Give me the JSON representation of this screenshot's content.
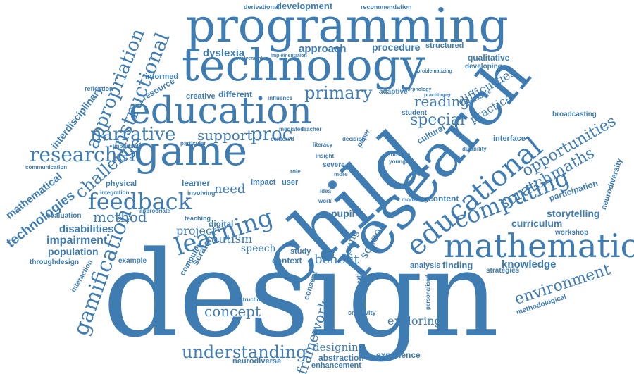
{
  "accent_color": "#3f7cb2",
  "words": {
    "design": "design",
    "child": "child",
    "research": "research",
    "programming": "programming",
    "technology": "technology",
    "education": "education",
    "game": "game",
    "mathematic": "mathematic",
    "educational": "educational",
    "computing": "computing",
    "feedback": "feedback",
    "learning": "learning",
    "gamification": "gamification",
    "instructional": "instructional",
    "appropriation": "appropriation",
    "researcher": "researcher",
    "narrative": "narrative",
    "challenge": "challenge",
    "technologies": "technologies",
    "mathematical": "mathematical",
    "interdisciplinary": "interdisciplinary",
    "understanding": "understanding",
    "framework": "framework",
    "scratchmaths": "scratchmaths",
    "opportunities": "opportunities",
    "environment": "environment",
    "knowledge": "knowledge",
    "curriculum": "curriculum",
    "storytelling": "storytelling",
    "participation": "participation",
    "neurodiversity": "neurodiversity",
    "difficulties": "difficulties",
    "practice": "practice",
    "qualitative": "qualitative",
    "developing": "developing",
    "special": "special",
    "reading": "reading",
    "primary": "primary",
    "procedure": "procedure",
    "structured": "structured",
    "approach": "approach",
    "dyslexia": "dyslexia",
    "development": "development",
    "derivational": "derivational",
    "recommendation": "recommendation",
    "support": "support",
    "proc": "proc",
    "method": "method",
    "disabilities": "disabilities",
    "impairment": "impairment",
    "population": "population",
    "throughdesign": "throughdesign",
    "evaluation": "evaluation",
    "example": "example",
    "interaction": "interaction",
    "project": "project",
    "need": "need",
    "autism": "autism",
    "speech": "speech",
    "concept": "concept",
    "context": "context",
    "benefit": "benefit",
    "school": "school",
    "young": "young",
    "exploring": "exploring",
    "designing": "designing",
    "abstraction": "abstraction",
    "enhancement": "enhancement",
    "experience": "experience",
    "neurodiverse": "neurodiverse",
    "analysis": "analysis",
    "finding": "finding",
    "strategies": "strategies",
    "methodological": "methodological",
    "workshop": "workshop",
    "content": "content",
    "interface": "interface",
    "broadcasting": "broadcasting",
    "cultural": "cultural",
    "student": "student",
    "adaptive": "adaptive",
    "resource": "resource",
    "informed": "informed",
    "reflection": "reflection",
    "creative": "creative",
    "different": "different",
    "physical": "physical",
    "learner": "learner",
    "digital": "digital",
    "scratch": "scratch",
    "computer": "computer",
    "pupil": "pupil",
    "consent": "consent",
    "creativity": "creativity",
    "communication": "communication",
    "integration": "integration",
    "appropriate": "appropriate",
    "teaching": "teaching",
    "involving": "involving",
    "particular": "particular",
    "important": "important",
    "implementation": "implementation",
    "involvement": "involvement",
    "influence": "influence",
    "literacy": "literacy",
    "insight": "insight",
    "impact": "impact",
    "user": "user",
    "severe": "severe",
    "mediated": "mediated",
    "teacher": "teacher",
    "centered": "centered",
    "paper": "paper",
    "modelling": "modelling",
    "problematizing": "problematizing",
    "morphology": "morphology",
    "interactive": "interactive",
    "personalised": "personalised",
    "location": "location",
    "constructionism": "constructionism",
    "idea": "idea",
    "work": "work",
    "more": "more",
    "role": "role",
    "study": "study",
    "tutoring": "tutoring",
    "younger": "younger",
    "decision": "decision",
    "practitioner": "practitioner",
    "disability": "disability"
  }
}
